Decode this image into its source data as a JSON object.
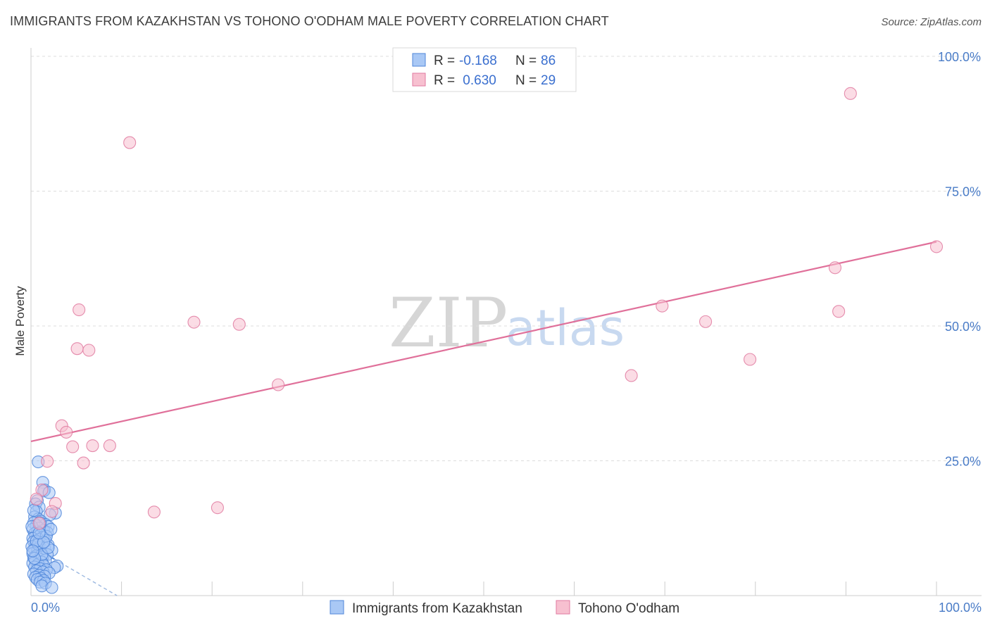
{
  "title": "IMMIGRANTS FROM KAZAKHSTAN VS TOHONO O'ODHAM MALE POVERTY CORRELATION CHART",
  "source": "Source: ZipAtlas.com",
  "watermark": {
    "zip": "ZIP",
    "atlas": "atlas"
  },
  "colors": {
    "blue_fill": "#a9c8f5",
    "blue_stroke": "#4f86d9",
    "pink_fill": "#f7c0d0",
    "pink_stroke": "#e07aa0",
    "pink_line": "#e0709a",
    "blue_line": "#9cb8e0",
    "grid": "#dddddd",
    "tick_text": "#4a7cc7"
  },
  "legend": {
    "rows": [
      {
        "r_label": "R = ",
        "r_value": "-0.168",
        "n_label": "N = ",
        "n_value": "86",
        "series": "blue"
      },
      {
        "r_label": "R = ",
        "r_value": " 0.630",
        "n_label": "N = ",
        "n_value": "29",
        "series": "pink"
      }
    ]
  },
  "chart_data": {
    "type": "scatter",
    "title": "IMMIGRANTS FROM KAZAKHSTAN VS TOHONO O'ODHAM MALE POVERTY CORRELATION CHART",
    "xlabel": "",
    "ylabel": "Male Poverty",
    "xlim": [
      0,
      100
    ],
    "ylim": [
      0,
      100
    ],
    "x_tick_labels": [
      "0.0%",
      "100.0%"
    ],
    "y_tick_labels": [
      "25.0%",
      "50.0%",
      "75.0%",
      "100.0%"
    ],
    "y_ticks": [
      25,
      50,
      75,
      100
    ],
    "grid": true,
    "legend_position": "top-center",
    "series": [
      {
        "name": "Immigrants from Kazakhstan",
        "color": "blue",
        "R": -0.168,
        "N": 86,
        "trend": {
          "x": [
            0,
            9.5
          ],
          "y": [
            9.3,
            0
          ]
        },
        "trend_solid_until_x": 2.6,
        "points": [
          {
            "x": 0.8,
            "y": 24.8
          },
          {
            "x": 1.3,
            "y": 21.0
          },
          {
            "x": 1.5,
            "y": 19.6
          },
          {
            "x": 1.4,
            "y": 19.4
          },
          {
            "x": 2.0,
            "y": 19.1
          },
          {
            "x": 0.7,
            "y": 17.6
          },
          {
            "x": 0.5,
            "y": 17.0
          },
          {
            "x": 0.9,
            "y": 16.4
          },
          {
            "x": 0.6,
            "y": 15.6
          },
          {
            "x": 2.7,
            "y": 15.3
          },
          {
            "x": 2.1,
            "y": 15.0
          },
          {
            "x": 0.4,
            "y": 14.6
          },
          {
            "x": 0.8,
            "y": 14.2
          },
          {
            "x": 1.1,
            "y": 13.8
          },
          {
            "x": 0.3,
            "y": 13.5
          },
          {
            "x": 1.6,
            "y": 13.2
          },
          {
            "x": 0.6,
            "y": 13.0
          },
          {
            "x": 1.9,
            "y": 12.8
          },
          {
            "x": 0.9,
            "y": 12.5
          },
          {
            "x": 0.2,
            "y": 12.3
          },
          {
            "x": 1.4,
            "y": 12.1
          },
          {
            "x": 0.7,
            "y": 11.9
          },
          {
            "x": 1.8,
            "y": 11.7
          },
          {
            "x": 0.4,
            "y": 11.5
          },
          {
            "x": 1.1,
            "y": 11.3
          },
          {
            "x": 0.5,
            "y": 11.0
          },
          {
            "x": 1.3,
            "y": 10.8
          },
          {
            "x": 0.2,
            "y": 10.6
          },
          {
            "x": 0.9,
            "y": 10.4
          },
          {
            "x": 1.6,
            "y": 10.2
          },
          {
            "x": 0.3,
            "y": 10.0
          },
          {
            "x": 0.8,
            "y": 9.8
          },
          {
            "x": 1.2,
            "y": 9.6
          },
          {
            "x": 1.9,
            "y": 9.4
          },
          {
            "x": 0.5,
            "y": 9.3
          },
          {
            "x": 0.1,
            "y": 9.1
          },
          {
            "x": 1.0,
            "y": 9.0
          },
          {
            "x": 1.5,
            "y": 8.8
          },
          {
            "x": 0.4,
            "y": 8.6
          },
          {
            "x": 2.3,
            "y": 8.4
          },
          {
            "x": 0.7,
            "y": 8.2
          },
          {
            "x": 1.1,
            "y": 8.0
          },
          {
            "x": 0.2,
            "y": 7.8
          },
          {
            "x": 1.8,
            "y": 7.6
          },
          {
            "x": 0.6,
            "y": 7.4
          },
          {
            "x": 1.3,
            "y": 7.2
          },
          {
            "x": 0.3,
            "y": 7.0
          },
          {
            "x": 0.9,
            "y": 6.8
          },
          {
            "x": 1.6,
            "y": 6.6
          },
          {
            "x": 0.5,
            "y": 6.4
          },
          {
            "x": 1.2,
            "y": 6.2
          },
          {
            "x": 0.2,
            "y": 6.0
          },
          {
            "x": 0.8,
            "y": 5.8
          },
          {
            "x": 1.4,
            "y": 5.6
          },
          {
            "x": 2.9,
            "y": 5.5
          },
          {
            "x": 2.6,
            "y": 5.2
          },
          {
            "x": 0.4,
            "y": 5.3
          },
          {
            "x": 1.0,
            "y": 5.0
          },
          {
            "x": 1.7,
            "y": 4.8
          },
          {
            "x": 0.6,
            "y": 4.6
          },
          {
            "x": 1.3,
            "y": 4.4
          },
          {
            "x": 2.0,
            "y": 4.2
          },
          {
            "x": 0.3,
            "y": 4.0
          },
          {
            "x": 0.9,
            "y": 3.8
          },
          {
            "x": 1.5,
            "y": 3.6
          },
          {
            "x": 0.5,
            "y": 3.4
          },
          {
            "x": 1.1,
            "y": 3.2
          },
          {
            "x": 0.7,
            "y": 3.0
          },
          {
            "x": 1.4,
            "y": 2.8
          },
          {
            "x": 1.0,
            "y": 2.5
          },
          {
            "x": 1.6,
            "y": 2.3
          },
          {
            "x": 1.2,
            "y": 1.8
          },
          {
            "x": 2.3,
            "y": 1.5
          },
          {
            "x": 0.8,
            "y": 9.5
          },
          {
            "x": 1.7,
            "y": 11.0
          },
          {
            "x": 0.1,
            "y": 12.8
          },
          {
            "x": 1.0,
            "y": 13.5
          },
          {
            "x": 0.3,
            "y": 15.8
          },
          {
            "x": 1.2,
            "y": 7.6
          },
          {
            "x": 0.6,
            "y": 10.1
          },
          {
            "x": 1.9,
            "y": 8.9
          },
          {
            "x": 0.4,
            "y": 6.9
          },
          {
            "x": 1.4,
            "y": 9.9
          },
          {
            "x": 0.9,
            "y": 11.6
          },
          {
            "x": 2.2,
            "y": 12.3
          },
          {
            "x": 0.2,
            "y": 8.3
          }
        ]
      },
      {
        "name": "Tohono O'odham",
        "color": "pink",
        "R": 0.63,
        "N": 29,
        "trend": {
          "x": [
            0,
            100
          ],
          "y": [
            28.6,
            65.6
          ]
        },
        "points": [
          {
            "x": 90.5,
            "y": 93.1
          },
          {
            "x": 10.9,
            "y": 84.0
          },
          {
            "x": 100,
            "y": 64.7
          },
          {
            "x": 88.8,
            "y": 60.8
          },
          {
            "x": 5.3,
            "y": 53.0
          },
          {
            "x": 69.7,
            "y": 53.7
          },
          {
            "x": 89.2,
            "y": 52.7
          },
          {
            "x": 18.0,
            "y": 50.7
          },
          {
            "x": 23.0,
            "y": 50.3
          },
          {
            "x": 74.5,
            "y": 50.8
          },
          {
            "x": 5.1,
            "y": 45.8
          },
          {
            "x": 6.4,
            "y": 45.5
          },
          {
            "x": 79.4,
            "y": 43.8
          },
          {
            "x": 66.3,
            "y": 40.8
          },
          {
            "x": 27.3,
            "y": 39.1
          },
          {
            "x": 3.4,
            "y": 31.5
          },
          {
            "x": 3.9,
            "y": 30.3
          },
          {
            "x": 4.6,
            "y": 27.6
          },
          {
            "x": 6.8,
            "y": 27.8
          },
          {
            "x": 8.7,
            "y": 27.8
          },
          {
            "x": 1.8,
            "y": 24.9
          },
          {
            "x": 5.8,
            "y": 24.6
          },
          {
            "x": 1.2,
            "y": 19.6
          },
          {
            "x": 0.6,
            "y": 17.9
          },
          {
            "x": 2.7,
            "y": 17.1
          },
          {
            "x": 2.3,
            "y": 15.6
          },
          {
            "x": 20.6,
            "y": 16.3
          },
          {
            "x": 13.6,
            "y": 15.5
          },
          {
            "x": 0.9,
            "y": 13.4
          }
        ]
      }
    ]
  },
  "bottom_legend": {
    "items": [
      {
        "label": "Immigrants from Kazakhstan",
        "series": "blue"
      },
      {
        "label": "Tohono O'odham",
        "series": "pink"
      }
    ]
  }
}
